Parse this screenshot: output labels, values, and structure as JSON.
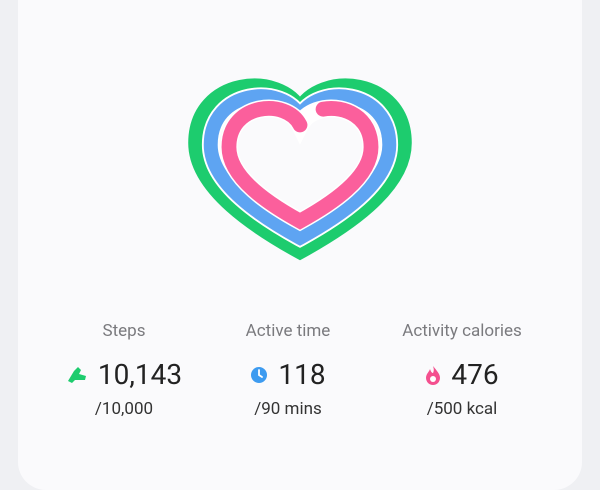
{
  "metrics": [
    {
      "label": "Steps",
      "value": "10,143",
      "goal": "/10,000"
    },
    {
      "label": "Active time",
      "value": "118",
      "goal": "/90 mins"
    },
    {
      "label": "Activity calories",
      "value": "476",
      "goal": "/500 kcal"
    }
  ]
}
